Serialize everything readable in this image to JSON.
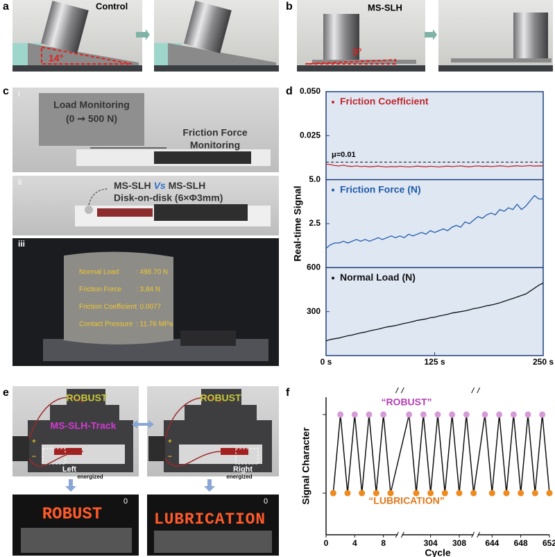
{
  "panels": {
    "a": {
      "label": "a",
      "control": "Control",
      "angle": "14°"
    },
    "b": {
      "label": "b",
      "sample": "MS-SLH",
      "angle": "3°"
    },
    "c": {
      "label": "c",
      "i": {
        "label": "i",
        "load": "Load Monitoring",
        "load_range": "(0 ➞ 500 N)",
        "friction_1": "Friction Force",
        "friction_2": "Monitoring"
      },
      "ii": {
        "label": "ii",
        "title_a": "MS-SLH",
        "title_vs": "Vs",
        "title_b": "MS-SLH",
        "subtitle": "Disk-on-disk  (6×Φ3mm)"
      },
      "iii": {
        "label": "iii",
        "readout": [
          [
            "Normal Load",
            ": 498.70 N"
          ],
          [
            "Friction Force",
            ": 3.84 N"
          ],
          [
            "Friction Coefficient",
            ": 0.0077"
          ],
          [
            "Contact Pressure",
            ": 11.76 MPa"
          ]
        ]
      }
    },
    "d": {
      "label": "d"
    },
    "e": {
      "label": "e",
      "robust_left": "ROBUST",
      "track": "MS-SLH-Track",
      "left": "Left",
      "energized_left": "energized",
      "robust_right": "ROBUST",
      "right": "Right",
      "energized_right": "energized",
      "plus": "+",
      "minus": "−",
      "led_left": "ROBUST",
      "led_right": "LUBRICATION",
      "counter_left": "0",
      "counter_right": "0"
    },
    "f": {
      "label": "f"
    }
  },
  "chart_data": [
    {
      "type": "line",
      "ylabel": "Real-time  Signal",
      "x": [
        0,
        5,
        10,
        15,
        20,
        25,
        30,
        35,
        40,
        45,
        50,
        55,
        60,
        65,
        70,
        75,
        80,
        85,
        90,
        95,
        100,
        105,
        110,
        115,
        120,
        125,
        130,
        135,
        140,
        145,
        150,
        155,
        160,
        165,
        170,
        175,
        180,
        185,
        190,
        195,
        200,
        205,
        210,
        215,
        220,
        225,
        230,
        235,
        240,
        245,
        250
      ],
      "xlim": [
        0,
        250
      ],
      "xticks": [
        {
          "value": 0,
          "label": "0 s"
        },
        {
          "value": 125,
          "label": "125 s"
        },
        {
          "value": 250,
          "label": "250 s"
        }
      ],
      "series": [
        {
          "name": "Friction Coefficient",
          "color": "#c0282d",
          "ylim": [
            0,
            0.05
          ],
          "yticks": [
            0.025,
            {
              "value": 0.05,
              "label": "0.050"
            }
          ],
          "reference_line": {
            "value": 0.01,
            "label": "μ=0.01"
          },
          "values": [
            0.0088,
            0.0086,
            0.008,
            0.0078,
            0.0082,
            0.0077,
            0.0075,
            0.0078,
            0.0074,
            0.0076,
            0.0073,
            0.0075,
            0.0077,
            0.0074,
            0.0072,
            0.0075,
            0.0073,
            0.0076,
            0.0074,
            0.0072,
            0.0074,
            0.0077,
            0.0075,
            0.0073,
            0.0076,
            0.0074,
            0.0072,
            0.0075,
            0.0077,
            0.0074,
            0.0076,
            0.0078,
            0.0075,
            0.0073,
            0.0076,
            0.0078,
            0.0075,
            0.0077,
            0.0074,
            0.0076,
            0.0079,
            0.0076,
            0.0074,
            0.0077,
            0.0079,
            0.0076,
            0.0078,
            0.008,
            0.0077,
            0.0079,
            0.0078
          ]
        },
        {
          "name": "Friction Force (N)",
          "color": "#1f5aa8",
          "ylim": [
            0,
            5
          ],
          "yticks": [
            2.5,
            {
              "value": 5,
              "label": "5.0"
            }
          ],
          "values": [
            1.1,
            1.3,
            1.4,
            1.4,
            1.5,
            1.4,
            1.5,
            1.6,
            1.5,
            1.6,
            1.5,
            1.6,
            1.7,
            1.6,
            1.7,
            1.8,
            1.7,
            1.8,
            1.7,
            1.9,
            1.8,
            1.9,
            2.0,
            1.9,
            2.1,
            2.0,
            2.1,
            2.2,
            2.1,
            2.3,
            2.4,
            2.3,
            2.6,
            2.5,
            2.7,
            2.9,
            2.8,
            3.0,
            3.1,
            3.0,
            3.3,
            3.2,
            3.4,
            3.3,
            3.6,
            3.3,
            3.5,
            3.8,
            4.1,
            3.9,
            3.9
          ]
        },
        {
          "name": "Normal  Load (N)",
          "color": "#111111",
          "ylim": [
            0,
            600
          ],
          "yticks": [
            300,
            600
          ],
          "values": [
            100,
            110,
            115,
            120,
            128,
            135,
            140,
            148,
            155,
            160,
            168,
            175,
            180,
            188,
            195,
            200,
            205,
            212,
            220,
            225,
            232,
            240,
            245,
            250,
            258,
            262,
            270,
            275,
            282,
            290,
            295,
            300,
            305,
            312,
            320,
            325,
            332,
            340,
            345,
            352,
            360,
            370,
            380,
            390,
            400,
            410,
            420,
            440,
            460,
            480,
            495
          ]
        }
      ]
    },
    {
      "type": "line",
      "xlabel": "Cycle",
      "ylabel": "Signal Character",
      "xlim_segments": [
        [
          0,
          10
        ],
        [
          300,
          310
        ],
        [
          642,
          652
        ]
      ],
      "xticks": [
        0,
        4,
        8,
        304,
        308,
        644,
        648,
        652
      ],
      "ylim": [
        -0.53,
        1.22
      ],
      "yticks": [
        0,
        1
      ],
      "annotations": [
        {
          "text": "“ROBUST”",
          "color": "#b23fb4"
        },
        {
          "text": "“LUBRICATION”",
          "color": "#e0771a"
        }
      ],
      "color": "#111111",
      "x": [
        1,
        2,
        3,
        4,
        5,
        6,
        7,
        8,
        9,
        301,
        302,
        303,
        304,
        305,
        306,
        307,
        308,
        309,
        310,
        643,
        644,
        645,
        646,
        647,
        648,
        649,
        650,
        651,
        652
      ],
      "values": [
        0,
        1,
        0,
        1,
        0,
        1,
        0,
        1,
        0,
        1,
        0,
        1,
        0,
        1,
        0,
        1,
        0,
        1,
        0,
        1,
        0,
        1,
        0,
        1,
        0,
        1,
        0,
        1,
        0
      ],
      "marker_colors": [
        "#ee8a1e",
        "#d79ad8",
        "#ee8a1e",
        "#d79ad8",
        "#ee8a1e",
        "#d79ad8",
        "#ee8a1e",
        "#d79ad8",
        "#ee8a1e",
        "#d79ad8",
        "#ee8a1e",
        "#d79ad8",
        "#ee8a1e",
        "#d79ad8",
        "#ee8a1e",
        "#d79ad8",
        "#ee8a1e",
        "#d79ad8",
        "#ee8a1e",
        "#d79ad8",
        "#ee8a1e",
        "#d79ad8",
        "#ee8a1e",
        "#d79ad8",
        "#ee8a1e",
        "#d79ad8",
        "#ee8a1e",
        "#d79ad8",
        "#ee8a1e"
      ]
    }
  ]
}
